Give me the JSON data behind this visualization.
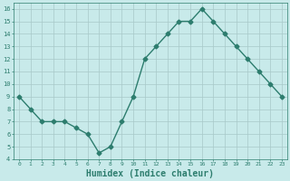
{
  "x": [
    0,
    1,
    2,
    3,
    4,
    5,
    6,
    7,
    8,
    9,
    10,
    11,
    12,
    13,
    14,
    15,
    16,
    17,
    18,
    19,
    20,
    21,
    22,
    23
  ],
  "y": [
    9,
    8,
    7,
    7,
    7,
    6.5,
    6,
    4.5,
    5,
    7,
    9,
    12,
    13,
    14,
    15,
    15,
    16,
    15,
    14,
    13,
    12,
    11,
    10,
    9
  ],
  "line_color": "#2d7d6e",
  "marker": "D",
  "marker_size": 2.5,
  "line_width": 1.0,
  "bg_color": "#c8eaea",
  "grid_color": "#a8c8c8",
  "xlabel": "Humidex (Indice chaleur)",
  "xlabel_fontsize": 7,
  "xlabel_color": "#2d7d6e",
  "tick_color": "#2d7d6e",
  "ylim": [
    4,
    16.5
  ],
  "xlim": [
    -0.5,
    23.5
  ],
  "yticks": [
    4,
    5,
    6,
    7,
    8,
    9,
    10,
    11,
    12,
    13,
    14,
    15,
    16
  ],
  "xtick_labels": [
    "0",
    "1",
    "2",
    "3",
    "4",
    "5",
    "6",
    "7",
    "8",
    "9",
    "10",
    "11",
    "12",
    "13",
    "14",
    "15",
    "16",
    "17",
    "18",
    "19",
    "20",
    "21",
    "22",
    "23"
  ]
}
